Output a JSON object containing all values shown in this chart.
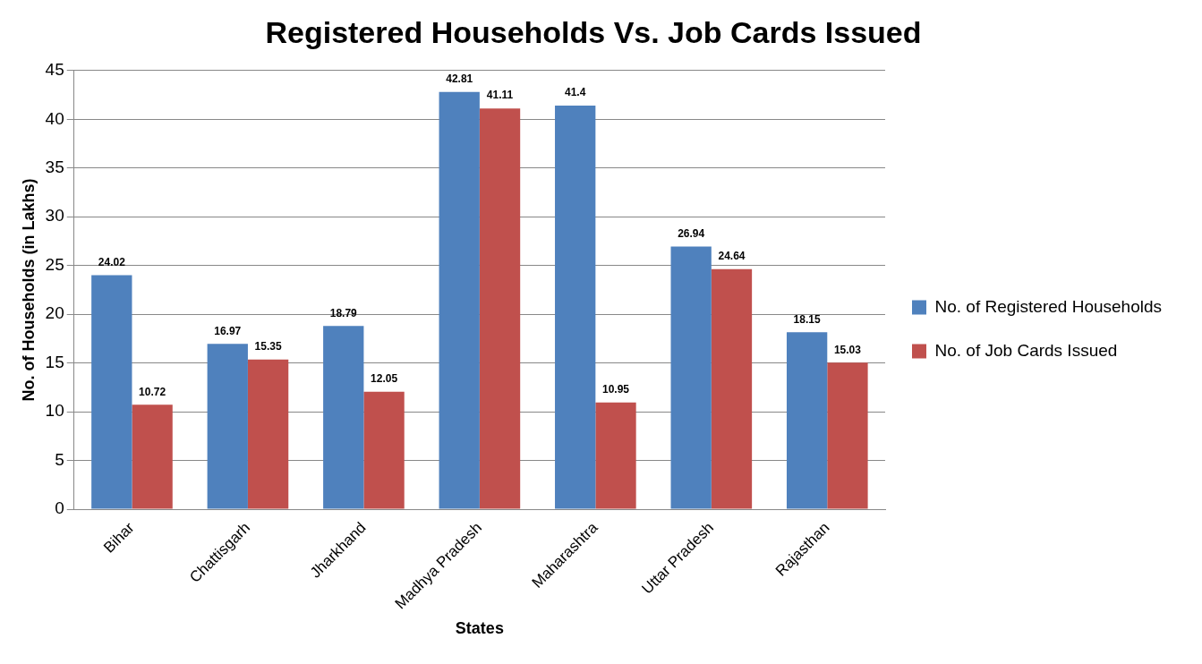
{
  "chart_data": {
    "type": "bar",
    "title": "Registered Households Vs. Job Cards Issued",
    "xlabel": "States",
    "ylabel": "No. of Households (in Lakhs)",
    "categories": [
      "Bihar",
      "Chattisgarh",
      "Jharkhand",
      "Madhya Pradesh",
      "Maharashtra",
      "Uttar Pradesh",
      "Rajasthan"
    ],
    "series": [
      {
        "name": "No. of Registered Households",
        "color": "#4f81bd",
        "values": [
          24.02,
          16.97,
          18.79,
          42.81,
          41.4,
          26.94,
          18.15
        ]
      },
      {
        "name": "No. of Job Cards Issued",
        "color": "#c0504d",
        "values": [
          10.72,
          15.35,
          12.05,
          41.11,
          10.95,
          24.64,
          15.03
        ]
      }
    ],
    "ylim": [
      0,
      45
    ],
    "yticks": [
      0,
      5,
      10,
      15,
      20,
      25,
      30,
      35,
      40,
      45
    ],
    "grid": "y",
    "legend": "right",
    "data_labels": true
  }
}
